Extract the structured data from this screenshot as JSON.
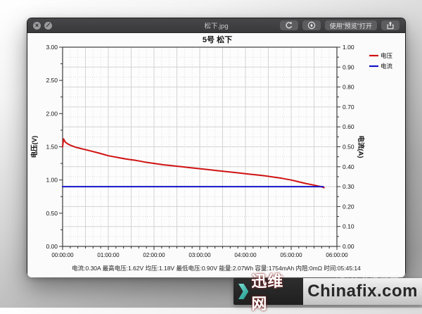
{
  "window": {
    "title": "松下.jpg",
    "toolbar": {
      "open_with_label": "使用\"预览\"打开"
    }
  },
  "chart_data": {
    "type": "line",
    "title": "5号 松下",
    "x_axis": {
      "min_h": 0,
      "max_h": 6,
      "tick_labels": [
        "00:00:00",
        "01:00:00",
        "02:00:00",
        "03:00:00",
        "04:00:00",
        "05:00:00",
        "06:00:00"
      ],
      "minor_tick_minutes": 10,
      "solid_grid_minutes": 30
    },
    "left_axis": {
      "label": "电压(V)",
      "min": 0,
      "max": 3,
      "tick_labels": [
        "3.00",
        "2.50",
        "2.00",
        "1.50",
        "1.00",
        "0.50",
        "0.00"
      ],
      "minor_step": 0.25
    },
    "right_axis": {
      "label": "电流(A)",
      "min": 0,
      "max": 1,
      "tick_labels": [
        "1.00",
        "0.90",
        "0.80",
        "0.70",
        "0.60",
        "0.50",
        "0.40",
        "0.30",
        "0.20",
        "0.10",
        "0.00"
      ],
      "minor_step": 0.05
    },
    "legend_position": "top-right-outside",
    "series": [
      {
        "name": "电压",
        "axis": "left",
        "color": "#d01212",
        "points": [
          [
            0,
            1.5
          ],
          [
            0.02,
            1.62
          ],
          [
            0.06,
            1.57
          ],
          [
            0.12,
            1.54
          ],
          [
            0.2,
            1.515
          ],
          [
            0.3,
            1.49
          ],
          [
            0.45,
            1.465
          ],
          [
            0.6,
            1.44
          ],
          [
            0.8,
            1.405
          ],
          [
            1.0,
            1.365
          ],
          [
            1.2,
            1.34
          ],
          [
            1.4,
            1.315
          ],
          [
            1.6,
            1.295
          ],
          [
            1.8,
            1.27
          ],
          [
            2.0,
            1.25
          ],
          [
            2.2,
            1.23
          ],
          [
            2.4,
            1.215
          ],
          [
            2.6,
            1.2
          ],
          [
            2.8,
            1.185
          ],
          [
            3.0,
            1.17
          ],
          [
            3.2,
            1.155
          ],
          [
            3.4,
            1.14
          ],
          [
            3.6,
            1.125
          ],
          [
            3.8,
            1.11
          ],
          [
            4.0,
            1.095
          ],
          [
            4.2,
            1.08
          ],
          [
            4.4,
            1.065
          ],
          [
            4.6,
            1.045
          ],
          [
            4.8,
            1.025
          ],
          [
            5.0,
            1.0
          ],
          [
            5.15,
            0.975
          ],
          [
            5.3,
            0.95
          ],
          [
            5.45,
            0.93
          ],
          [
            5.55,
            0.915
          ],
          [
            5.65,
            0.9
          ],
          [
            5.72,
            0.885
          ]
        ]
      },
      {
        "name": "电流",
        "axis": "right",
        "color": "#1414c8",
        "points": [
          [
            0,
            0.3
          ],
          [
            5.7,
            0.3
          ]
        ]
      }
    ]
  },
  "stats_line": "电流:0.30A  最高电压:1.62V  均压:1.18V  最低电压:0.90V  能量:2.07Wh  容量:1754mAh  内阻:0mΩ  时间:05:45:14",
  "watermark": {
    "site_cn": "迅维网",
    "site_en": "Chinafix.com",
    "ghost_seal": "有",
    "ghost_text": "什么值得买"
  }
}
